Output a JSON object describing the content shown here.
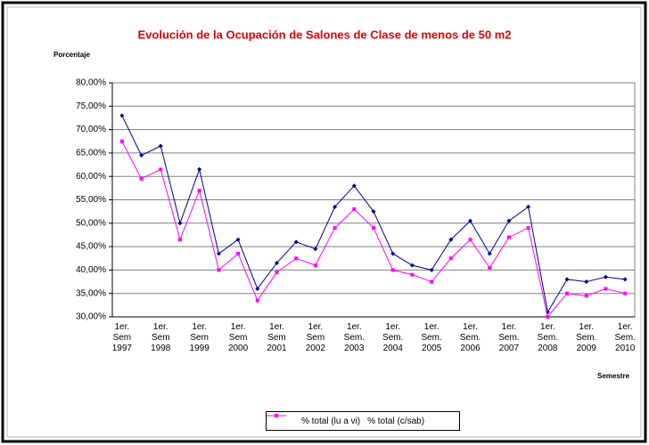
{
  "chart_data": {
    "type": "line",
    "title": "Evolución de la Ocupación de Salones de Clase de menos de 50 m2",
    "y_label": "Porcentaje",
    "x_label": "Semestre",
    "categories": [
      "1er. Sem 1997",
      null,
      "1er. Sem 1998",
      null,
      "1er. Sem 1999",
      null,
      "1er. Sem 2000",
      null,
      "1er. Sem 2001",
      null,
      "1er. Sem 2002",
      null,
      "1er. Sem. 2003",
      null,
      "1er. Sem. 2004",
      null,
      "1er. Sem. 2005",
      null,
      "1er. Sem. 2006",
      null,
      "1er. Sem. 2007",
      null,
      "1er. Sem. 2008",
      null,
      "1er. Sem. 2009",
      null,
      "1er. Sem. 2010"
    ],
    "series": [
      {
        "name": "% total (lu a vi)",
        "color": "#00008b",
        "marker": "diamond",
        "values": [
          73,
          64.5,
          66.5,
          50,
          61.5,
          43.5,
          46.5,
          36,
          41.5,
          46,
          44.5,
          53.5,
          58,
          52.5,
          43.5,
          41,
          40,
          46.5,
          50.5,
          43.5,
          50.5,
          53.5,
          31,
          38,
          37.5,
          38.5,
          38
        ]
      },
      {
        "name": "% total (c/sab)",
        "color": "#ff00ff",
        "marker": "square",
        "values": [
          67.5,
          59.5,
          61.5,
          46.5,
          57,
          40,
          43.5,
          33.5,
          39.5,
          42.5,
          41,
          49,
          53,
          49,
          40,
          39,
          37.5,
          42.5,
          46.5,
          40.5,
          47,
          49,
          30,
          35,
          34.5,
          36,
          35
        ]
      }
    ],
    "ylim": [
      30,
      80
    ],
    "yticks": [
      {
        "value": 30,
        "label": "30,00%"
      },
      {
        "value": 35,
        "label": "35,00%"
      },
      {
        "value": 40,
        "label": "40,00%"
      },
      {
        "value": 45,
        "label": "45,00%"
      },
      {
        "value": 50,
        "label": "50,00%"
      },
      {
        "value": 55,
        "label": "55,00%"
      },
      {
        "value": 60,
        "label": "60,00%"
      },
      {
        "value": 65,
        "label": "65,00%"
      },
      {
        "value": 70,
        "label": "70,00%"
      },
      {
        "value": 75,
        "label": "75,00%"
      },
      {
        "value": 80,
        "label": "80,00%"
      }
    ],
    "grid": true,
    "legend": "bottom"
  }
}
